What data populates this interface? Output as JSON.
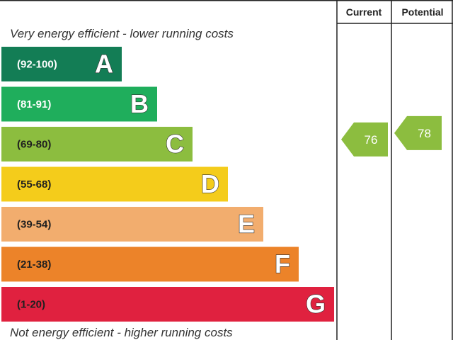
{
  "chart_data": {
    "type": "bar",
    "title": "",
    "top_caption": "Very energy efficient - lower running costs",
    "bottom_caption": "Not energy efficient - higher running costs",
    "columns": [
      "Current",
      "Potential"
    ],
    "bands": [
      {
        "range": "(92-100)",
        "letter": "A",
        "color": "#137d55",
        "range_text_color": "#ffffff"
      },
      {
        "range": "(81-91)",
        "letter": "B",
        "color": "#1fae5c",
        "range_text_color": "#ffffff"
      },
      {
        "range": "(69-80)",
        "letter": "C",
        "color": "#8cbd3f",
        "range_text_color": "#1f1f1f"
      },
      {
        "range": "(55-68)",
        "letter": "D",
        "color": "#f4cc1b",
        "range_text_color": "#1f1f1f"
      },
      {
        "range": "(39-54)",
        "letter": "E",
        "color": "#f2ad6e",
        "range_text_color": "#1f1f1f"
      },
      {
        "range": "(21-38)",
        "letter": "F",
        "color": "#ec8329",
        "range_text_color": "#1f1f1f"
      },
      {
        "range": "(1-20)",
        "letter": "G",
        "color": "#e0213f",
        "range_text_color": "#1f1f1f"
      }
    ],
    "ratings": {
      "current": {
        "value": 76,
        "label": "76",
        "band": "C",
        "color": "#8cbd3f"
      },
      "potential": {
        "value": 78,
        "label": "78",
        "band": "C",
        "color": "#8cbd3f"
      }
    }
  }
}
